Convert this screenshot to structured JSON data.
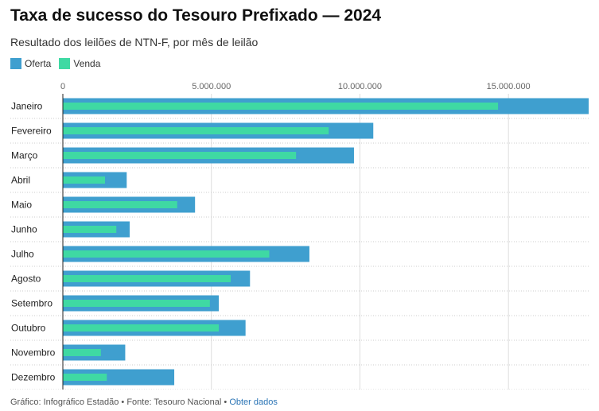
{
  "title": "Taxa de sucesso do Tesouro Prefixado — 2024",
  "subtitle": "Resultado dos leilões de NTN-F, por mês de leilão",
  "legend": [
    {
      "label": "Oferta",
      "color": "#3f9fcf"
    },
    {
      "label": "Venda",
      "color": "#3fd9a3"
    }
  ],
  "footer": {
    "credit": "Gráfico: Infográfico Estadão • Fonte: Tesouro Nacional • ",
    "link": "Obter dados"
  },
  "chart_data": {
    "type": "bar",
    "orientation": "horizontal",
    "categories": [
      "Janeiro",
      "Fevereiro",
      "Março",
      "Abril",
      "Maio",
      "Junho",
      "Julho",
      "Agosto",
      "Setembro",
      "Outubro",
      "Novembro",
      "Dezembro"
    ],
    "series": [
      {
        "name": "Oferta",
        "color": "#3f9fcf",
        "values": [
          17700000,
          10450000,
          9800000,
          2150000,
          4450000,
          2250000,
          8300000,
          6300000,
          5250000,
          6150000,
          2100000,
          3750000
        ]
      },
      {
        "name": "Venda",
        "color": "#3fd9a3",
        "values": [
          14650000,
          8950000,
          7850000,
          1420000,
          3850000,
          1800000,
          6950000,
          5650000,
          4950000,
          5250000,
          1280000,
          1480000
        ]
      }
    ],
    "xlim": [
      0,
      17700000
    ],
    "xticks": [
      0,
      5000000,
      10000000,
      15000000
    ],
    "xtick_labels": [
      "0",
      "5.000.000",
      "10.000.000",
      "15.000.000"
    ],
    "grid": true
  }
}
